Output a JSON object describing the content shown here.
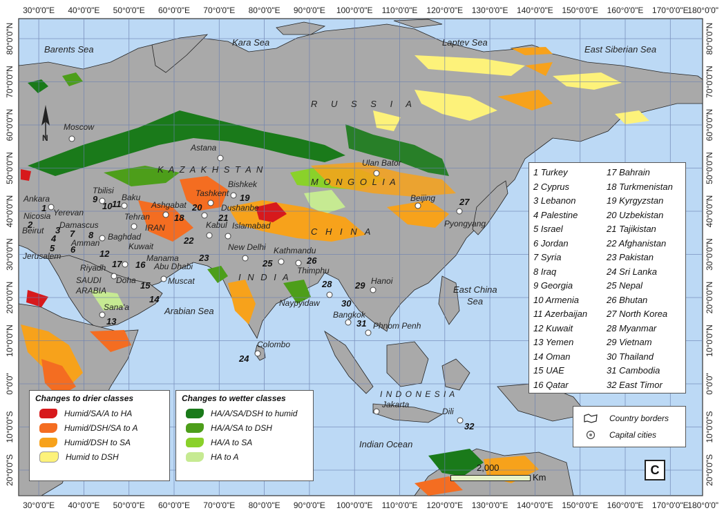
{
  "axes": {
    "lon_labels": [
      "30°0'0\"E",
      "40°0'0\"E",
      "50°0'0\"E",
      "60°0'0\"E",
      "70°0'0\"E",
      "80°0'0\"E",
      "90°0'0\"E",
      "100°0'0\"E",
      "110°0'0\"E",
      "120°0'0\"E",
      "130°0'0\"E",
      "140°0'0\"E",
      "150°0'0\"E",
      "160°0'0\"E",
      "170°0'0\"E",
      "180°0'0\""
    ],
    "lat_labels": [
      "80°0'0\"N",
      "70°0'0\"N",
      "60°0'0\"N",
      "50°0'0\"N",
      "40°0'0\"N",
      "30°0'0\"N",
      "20°0'0\"N",
      "10°0'0\"N",
      "0°0'0\"",
      "10°0'0\"S",
      "20°0'0\"S"
    ]
  },
  "seas": [
    {
      "name": "Barents  Sea",
      "kind": "sea"
    },
    {
      "name": "Kara  Sea",
      "kind": "sea"
    },
    {
      "name": "Laptev  Sea",
      "kind": "sea"
    },
    {
      "name": "East  Siberian  Sea",
      "kind": "sea"
    },
    {
      "name": "Arabian Sea",
      "kind": "sea"
    },
    {
      "name": "East China",
      "kind": "sea"
    },
    {
      "name": "Sea",
      "kind": "sea"
    },
    {
      "name": "Indian  Ocean",
      "kind": "sea"
    }
  ],
  "regions": [
    {
      "name": "R U S S I A"
    },
    {
      "name": "K A Z A K H S T A N"
    },
    {
      "name": "M O N G O L I A"
    },
    {
      "name": "C H I N A"
    },
    {
      "name": "I N D I A"
    },
    {
      "name": "SAUDI"
    },
    {
      "name": "ARABIA"
    },
    {
      "name": "IRAN"
    },
    {
      "name": "I N D O N E S I A"
    }
  ],
  "cities": [
    "Moscow",
    "Astana",
    "Ulan Bator",
    "Bishkek",
    "Tashkent",
    "Dushanbe",
    "Ashgabat",
    "Kabul",
    "Islamabad",
    "Baku",
    "Tbilisi",
    "Yerevan",
    "Tehran",
    "Ankara",
    "Nicosia",
    "Beirut",
    "Damascus",
    "Amman",
    "Jerusalem",
    "Baghdad",
    "Kuwait",
    "Manama",
    "Riyadh",
    "Doha",
    "Abu Dhabi",
    "Muscat",
    "Sana'a",
    "New Delhi",
    "Kathmandu",
    "Thimphu",
    "Beijing",
    "Pyongyang",
    "Naypyidaw",
    "Hanoi",
    "Bangkok",
    "Phnom Penh",
    "Colombo",
    "Jakarta",
    "Dili"
  ],
  "country_numbers": [
    "1",
    "2",
    "3",
    "4",
    "5",
    "6",
    "7",
    "8",
    "9",
    "10",
    "11",
    "12",
    "13",
    "14",
    "15",
    "16",
    "17",
    "18",
    "19",
    "20",
    "21",
    "22",
    "23",
    "24",
    "25",
    "26",
    "27",
    "28",
    "29",
    "30",
    "31",
    "32"
  ],
  "countries": [
    "1 Turkey",
    "2 Cyprus",
    "3 Lebanon",
    "4 Palestine",
    "5 Israel",
    "6 Jordan",
    "7 Syria",
    "8 Iraq",
    "9 Georgia",
    "10 Armenia",
    "11 Azerbaijan",
    "12 Kuwait",
    "13 Yemen",
    "14 Oman",
    "15 UAE",
    "16 Qatar",
    "17 Bahrain",
    "18 Turkmenistan",
    "19 Kyrgyzstan",
    "20 Uzbekistan",
    "21 Tajikistan",
    "22 Afghanistan",
    "23 Pakistan",
    "24 Sri Lanka",
    "25 Nepal",
    "26 Bhutan",
    "27 North Korea",
    "28 Myanmar",
    "29 Vietnam",
    "30 Thailand",
    "31 Cambodia",
    "32 East Timor"
  ],
  "legend_drier": {
    "title": "Changes to drier classes",
    "items": [
      {
        "label": "Humid/SA/A to HA",
        "color": "#d7191c"
      },
      {
        "label": "Humid/DSH/SA to A",
        "color": "#f46d21"
      },
      {
        "label": "Humid/DSH to SA",
        "color": "#f7a21b"
      },
      {
        "label": "Humid to DSH",
        "color": "#fdf27a"
      }
    ]
  },
  "legend_wetter": {
    "title": "Changes to wetter classes",
    "items": [
      {
        "label": "HA/A/SA/DSH to humid",
        "color": "#1a7a1a"
      },
      {
        "label": "HA/A/SA to DSH",
        "color": "#4d9e1a"
      },
      {
        "label": "HA/A to SA",
        "color": "#8ad12a"
      },
      {
        "label": "HA to A",
        "color": "#c6ea92"
      }
    ]
  },
  "symbols": {
    "borders_label": "Country borders",
    "capitals_label": "Capital cities"
  },
  "scale": {
    "value": "2,000",
    "unit": "Km"
  },
  "panel_letter": "C",
  "colors": {
    "ocean": "#bcd9f5",
    "land": "#a9a9a9",
    "grid": "#6a7fb0"
  }
}
